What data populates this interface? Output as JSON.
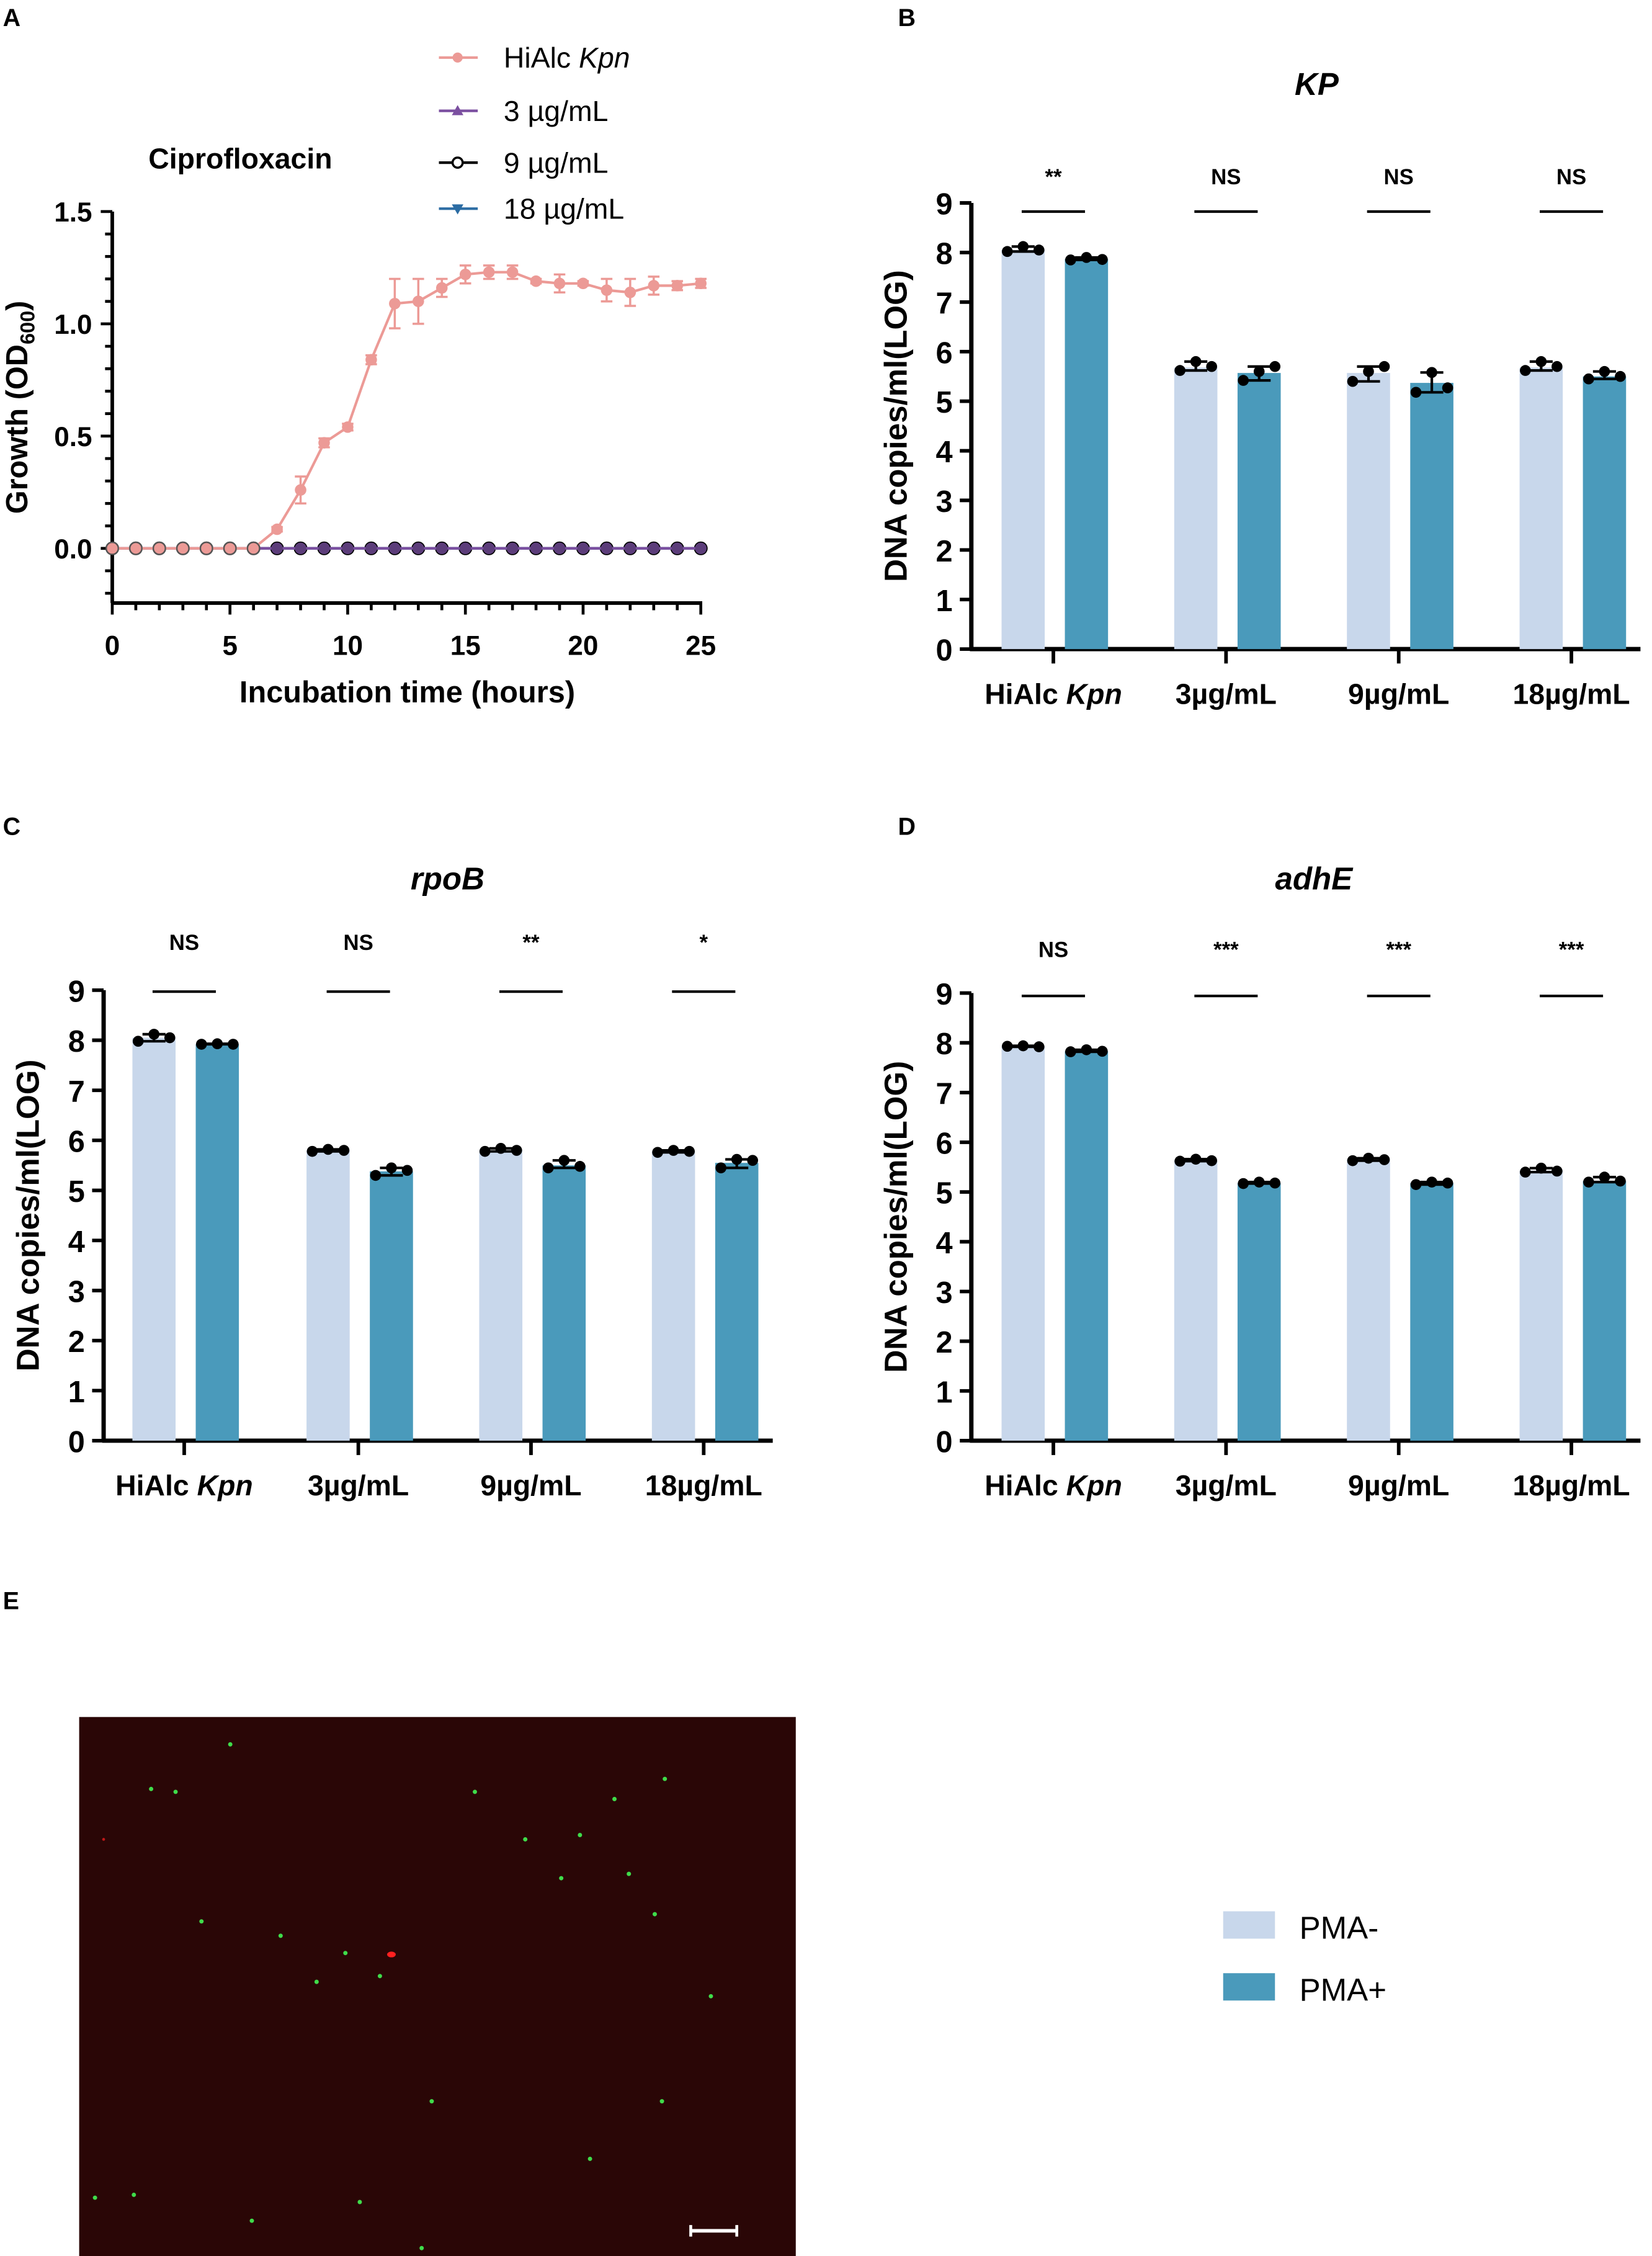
{
  "panel_labels": [
    "A",
    "B",
    "C",
    "D",
    "E"
  ],
  "colors": {
    "pma_minus": "#c8d7eb",
    "pma_plus": "#4a9abb",
    "hialc": "#ec9a96",
    "c3": "#7b4fa0",
    "c9": "#000000",
    "c18": "#2b6ca3",
    "micro_bg": "#2a0606"
  },
  "chart_data": [
    {
      "id": "A",
      "type": "line",
      "title": "Ciprofloxacin",
      "xlabel": "Incubation time (hours)",
      "ylabel": "Growth (OD",
      "ylabel_sub": "600",
      "ylabel_end": ")",
      "xlim": [
        0,
        25
      ],
      "ylim": [
        -0.25,
        1.5
      ],
      "xticks": [
        "0",
        "5",
        "10",
        "15",
        "20",
        "25"
      ],
      "yticks": [
        "0.0",
        "0.5",
        "1.0",
        "1.5"
      ],
      "x": [
        0,
        1,
        2,
        3,
        4,
        5,
        6,
        7,
        8,
        9,
        10,
        11,
        12,
        13,
        14,
        15,
        16,
        17,
        18,
        19,
        20,
        21,
        22,
        23,
        24,
        25
      ],
      "series": [
        {
          "name": "HiAlc",
          "name_italic": "Kpn",
          "color": "#ec9a96",
          "marker": "circle",
          "values": [
            0,
            0,
            0,
            0,
            0,
            0,
            0,
            0.085,
            0.26,
            0.47,
            0.54,
            0.84,
            1.09,
            1.1,
            1.16,
            1.22,
            1.23,
            1.23,
            1.19,
            1.18,
            1.18,
            1.15,
            1.14,
            1.17,
            1.17,
            1.18
          ],
          "errors": [
            0,
            0,
            0,
            0,
            0,
            0,
            0,
            0.01,
            0.06,
            0.02,
            0.015,
            0.02,
            0.11,
            0.1,
            0.04,
            0.04,
            0.03,
            0.03,
            0.01,
            0.04,
            0.01,
            0.05,
            0.06,
            0.04,
            0.02,
            0.02
          ]
        },
        {
          "name": "3 µg/mL",
          "color": "#7b4fa0",
          "marker": "triangle",
          "values": [
            0,
            0,
            0,
            0,
            0,
            0,
            0,
            0,
            0,
            0,
            0,
            0,
            0,
            0,
            0,
            0,
            0,
            0,
            0,
            0,
            0,
            0,
            0,
            0,
            0,
            0
          ]
        },
        {
          "name": "9 µg/mL",
          "color": "#000000",
          "marker": "open-circle",
          "values": [
            0,
            0,
            0,
            0,
            0,
            0,
            0,
            0,
            0,
            0,
            0,
            0,
            0,
            0,
            0,
            0,
            0,
            0,
            0,
            0,
            0,
            0,
            0,
            0,
            0,
            0
          ]
        },
        {
          "name": "18 µg/mL",
          "color": "#2b6ca3",
          "marker": "triangle-down",
          "values": [
            0,
            0,
            0,
            0,
            0,
            0,
            0,
            0,
            0,
            0,
            0,
            0,
            0,
            0,
            0,
            0,
            0,
            0,
            0,
            0,
            0,
            0,
            0,
            0,
            0,
            0
          ]
        }
      ]
    },
    {
      "id": "B",
      "type": "bar",
      "title": "KP",
      "ylabel": "DNA copies/ml(LOG)",
      "ylim": [
        0,
        9
      ],
      "yticks": [
        "0",
        "1",
        "2",
        "3",
        "4",
        "5",
        "6",
        "7",
        "8",
        "9"
      ],
      "categories": [
        {
          "text": "HiAlc ",
          "italic": "Kpn"
        },
        {
          "text": "3µg/mL"
        },
        {
          "text": "9µg/mL"
        },
        {
          "text": "18µg/mL"
        }
      ],
      "significance": [
        "**",
        "NS",
        "NS",
        "NS"
      ],
      "series": [
        {
          "name": "PMA-",
          "values": [
            8.05,
            5.68,
            5.57,
            5.68
          ],
          "points": [
            [
              8.02,
              8.12,
              8.05
            ],
            [
              5.62,
              5.8,
              5.7
            ],
            [
              5.4,
              5.6,
              5.7
            ],
            [
              5.62,
              5.8,
              5.7
            ]
          ]
        },
        {
          "name": "PMA+",
          "values": [
            7.87,
            5.57,
            5.37,
            5.5
          ],
          "points": [
            [
              7.85,
              7.9,
              7.86
            ],
            [
              5.42,
              5.6,
              5.7
            ],
            [
              5.18,
              5.58,
              5.27
            ],
            [
              5.45,
              5.6,
              5.5
            ]
          ]
        }
      ]
    },
    {
      "id": "C",
      "type": "bar",
      "title": "rpoB",
      "ylabel": "DNA copies/ml(LOG)",
      "ylim": [
        0,
        9
      ],
      "yticks": [
        "0",
        "1",
        "2",
        "3",
        "4",
        "5",
        "6",
        "7",
        "8",
        "9"
      ],
      "categories": [
        {
          "text": "HiAlc ",
          "italic": "Kpn"
        },
        {
          "text": "3µg/mL"
        },
        {
          "text": "9µg/mL"
        },
        {
          "text": "18µg/mL"
        }
      ],
      "significance": [
        "NS",
        "NS",
        "**",
        "*"
      ],
      "series": [
        {
          "name": "PMA-",
          "values": [
            8.05,
            5.8,
            5.8,
            5.78
          ],
          "points": [
            [
              7.98,
              8.12,
              8.05
            ],
            [
              5.78,
              5.82,
              5.8
            ],
            [
              5.78,
              5.84,
              5.8
            ],
            [
              5.76,
              5.8,
              5.78
            ]
          ]
        },
        {
          "name": "PMA+",
          "values": [
            7.92,
            5.38,
            5.5,
            5.55
          ],
          "points": [
            [
              7.92,
              7.93,
              7.92
            ],
            [
              5.3,
              5.45,
              5.4
            ],
            [
              5.45,
              5.6,
              5.48
            ],
            [
              5.45,
              5.62,
              5.6
            ]
          ]
        }
      ]
    },
    {
      "id": "D",
      "type": "bar",
      "title": "adhE",
      "ylabel": "DNA copies/ml(LOG)",
      "ylim": [
        0,
        9
      ],
      "yticks": [
        "0",
        "1",
        "2",
        "3",
        "4",
        "5",
        "6",
        "7",
        "8",
        "9"
      ],
      "categories": [
        {
          "text": "HiAlc ",
          "italic": "Kpn"
        },
        {
          "text": "3µg/mL"
        },
        {
          "text": "9µg/mL"
        },
        {
          "text": "18µg/mL"
        }
      ],
      "significance": [
        "NS",
        "***",
        "***",
        "***"
      ],
      "series": [
        {
          "name": "PMA-",
          "values": [
            7.93,
            5.63,
            5.65,
            5.43
          ],
          "points": [
            [
              7.93,
              7.94,
              7.92
            ],
            [
              5.62,
              5.66,
              5.63
            ],
            [
              5.63,
              5.68,
              5.65
            ],
            [
              5.4,
              5.48,
              5.42
            ]
          ]
        },
        {
          "name": "PMA+",
          "values": [
            7.83,
            5.18,
            5.18,
            5.22
          ],
          "points": [
            [
              7.82,
              7.86,
              7.83
            ],
            [
              5.17,
              5.2,
              5.18
            ],
            [
              5.15,
              5.2,
              5.18
            ],
            [
              5.2,
              5.3,
              5.22
            ]
          ]
        }
      ]
    }
  ],
  "legend_E": [
    {
      "label": "PMA-"
    },
    {
      "label": "PMA+"
    }
  ]
}
